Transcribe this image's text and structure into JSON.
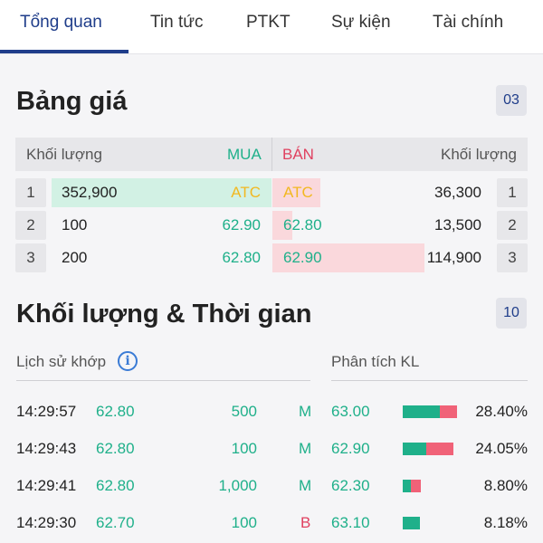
{
  "tabs": [
    {
      "label": "Tổng quan",
      "active": true
    },
    {
      "label": "Tin tức",
      "active": false
    },
    {
      "label": "PTKT",
      "active": false
    },
    {
      "label": "Sự kiện",
      "active": false
    },
    {
      "label": "Tài chính",
      "active": false
    }
  ],
  "price_board": {
    "title": "Bảng giá",
    "badge": "03",
    "headers": {
      "buy_volume": "Khối lượng",
      "buy": "MUA",
      "sell": "BÁN",
      "sell_volume": "Khối lượng"
    },
    "rows": [
      {
        "left_index": "1",
        "buy_volume": "352,900",
        "buy_price": "ATC",
        "sell_price": "ATC",
        "sell_volume": "36,300",
        "right_index": "1",
        "buy_level": 1.0,
        "sell_level": 0.22
      },
      {
        "left_index": "2",
        "buy_volume": "100",
        "buy_price": "62.90",
        "sell_price": "62.80",
        "sell_volume": "13,500",
        "right_index": "2",
        "buy_level": 0.0,
        "sell_level": 0.09
      },
      {
        "left_index": "3",
        "buy_volume": "200",
        "buy_price": "62.80",
        "sell_price": "62.90",
        "sell_volume": "114,900",
        "right_index": "3",
        "buy_level": 0.0,
        "sell_level": 0.7
      }
    ]
  },
  "volume_time": {
    "title": "Khối lượng & Thời gian",
    "badge": "10",
    "history_label": "Lịch sử khớp",
    "analysis_label": "Phân tích KL",
    "trades": [
      {
        "time": "14:29:57",
        "price": "62.80",
        "volume": "500",
        "side": "M"
      },
      {
        "time": "14:29:43",
        "price": "62.80",
        "volume": "100",
        "side": "M"
      },
      {
        "time": "14:29:41",
        "price": "62.80",
        "volume": "1,000",
        "side": "M"
      },
      {
        "time": "14:29:30",
        "price": "62.70",
        "volume": "100",
        "side": "B"
      }
    ],
    "analysis": [
      {
        "price": "63.00",
        "percent": "28.40%",
        "green_fraction": 0.68,
        "red_fraction": 0.32,
        "bar_level": 1.0
      },
      {
        "price": "62.90",
        "percent": "24.05%",
        "green_fraction": 0.46,
        "red_fraction": 0.54,
        "bar_level": 0.93
      },
      {
        "price": "62.30",
        "percent": "8.80%",
        "green_fraction": 0.45,
        "red_fraction": 0.55,
        "bar_level": 0.33
      },
      {
        "price": "63.10",
        "percent": "8.18%",
        "green_fraction": 1.0,
        "red_fraction": 0.0,
        "bar_level": 0.31
      }
    ]
  },
  "colors": {
    "accent": "#1f3d8a",
    "buy": "#1fb08a",
    "sell": "#e0405f",
    "atc": "#f2b820"
  }
}
